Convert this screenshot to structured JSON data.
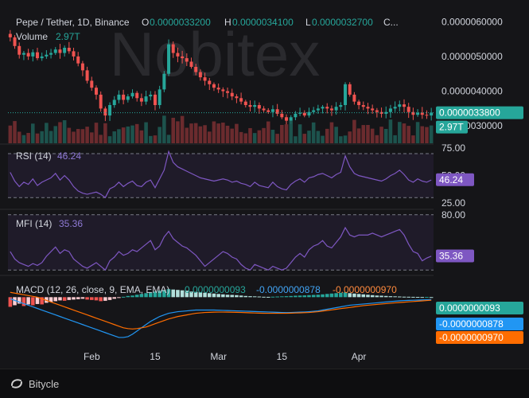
{
  "chart_data": [
    {
      "type": "candlestick",
      "pane": "price",
      "title": "Pepe / Tether, 1D, Binance",
      "ohlc_label": {
        "o_key": "O",
        "o": "0.0000033200",
        "h_key": "H",
        "h": "0.0000034100",
        "l_key": "L",
        "l": "0.0000032700",
        "c_key": "C..."
      },
      "volume_label": "Volume",
      "volume_value": "2.97T",
      "y_ticks": [
        "0.0000060000",
        "0.0000050000",
        "0.0000040000",
        "0.0000030000"
      ],
      "y_tick_values": [
        6.0,
        5.0,
        4.0,
        3.0
      ],
      "ylim": [
        2.5,
        6.35
      ],
      "y_unit_scale": "1e-6",
      "last_price_badge": "0.0000033800",
      "last_price_value": 3.38,
      "volume_badge": "2.97T",
      "close_series": [
        5.55,
        5.3,
        5.05,
        5.1,
        5.0,
        5.12,
        4.95,
        5.0,
        5.05,
        5.1,
        5.2,
        5.1,
        5.25,
        5.15,
        5.0,
        4.8,
        4.6,
        4.3,
        4.1,
        3.9,
        3.5,
        3.3,
        3.6,
        3.75,
        3.9,
        3.75,
        3.85,
        3.95,
        3.8,
        3.7,
        3.85,
        3.9,
        3.6,
        4.05,
        4.5,
        5.35,
        5.1,
        5.0,
        4.95,
        4.85,
        4.7,
        4.55,
        4.4,
        4.3,
        4.2,
        4.1,
        4.05,
        4.0,
        3.95,
        3.85,
        3.8,
        3.7,
        3.6,
        3.55,
        3.6,
        3.5,
        3.45,
        3.4,
        3.48,
        3.35,
        3.25,
        3.15,
        3.25,
        3.35,
        3.38,
        3.3,
        3.4,
        3.45,
        3.5,
        3.55,
        3.5,
        3.45,
        3.55,
        3.6,
        4.2,
        3.9,
        3.7,
        3.6,
        3.55,
        3.5,
        3.45,
        3.4,
        3.35,
        3.4,
        3.5,
        3.55,
        3.62,
        3.55,
        3.4,
        3.32,
        3.38,
        3.32,
        3.3,
        3.38
      ]
    },
    {
      "type": "line",
      "pane": "RSI",
      "label": "RSI (14)",
      "value": "46.24",
      "badge": "46.24",
      "y_ticks": [
        "75.00",
        "50.00",
        "25.00"
      ],
      "ylim": [
        20,
        78
      ],
      "band": [
        30,
        70
      ],
      "values": [
        53,
        45,
        40,
        44,
        42,
        47,
        41,
        44,
        46,
        48,
        52,
        46,
        50,
        46,
        40,
        36,
        34,
        33,
        34,
        35,
        33,
        30,
        38,
        40,
        44,
        40,
        43,
        45,
        41,
        40,
        44,
        46,
        39,
        47,
        55,
        72,
        62,
        58,
        56,
        54,
        52,
        50,
        48,
        47,
        46,
        45,
        46,
        47,
        46,
        44,
        45,
        43,
        42,
        40,
        44,
        41,
        40,
        39,
        44,
        40,
        38,
        37,
        42,
        45,
        47,
        44,
        48,
        49,
        51,
        52,
        50,
        48,
        51,
        53,
        68,
        58,
        52,
        50,
        49,
        48,
        47,
        46,
        45,
        47,
        50,
        52,
        55,
        51,
        46,
        44,
        47,
        45,
        44,
        46
      ]
    },
    {
      "type": "line",
      "pane": "MFI",
      "label": "MFI (14)",
      "value": "35.36",
      "badge": "35.36",
      "y_ticks": [
        "80.00"
      ],
      "ylim": [
        15,
        85
      ],
      "band": [
        20,
        80
      ],
      "values": [
        40,
        32,
        28,
        26,
        24,
        27,
        25,
        28,
        35,
        40,
        45,
        38,
        42,
        40,
        32,
        28,
        24,
        22,
        25,
        28,
        24,
        20,
        30,
        34,
        40,
        36,
        38,
        42,
        40,
        44,
        48,
        52,
        42,
        46,
        56,
        62,
        54,
        50,
        46,
        44,
        40,
        36,
        30,
        24,
        28,
        32,
        36,
        40,
        38,
        34,
        32,
        26,
        22,
        20,
        26,
        24,
        22,
        20,
        24,
        22,
        20,
        22,
        28,
        34,
        38,
        34,
        42,
        46,
        48,
        52,
        46,
        44,
        50,
        56,
        66,
        58,
        56,
        58,
        58,
        58,
        60,
        58,
        56,
        58,
        60,
        62,
        64,
        58,
        48,
        40,
        38,
        30,
        33,
        35
      ]
    },
    {
      "type": "histogram+line",
      "pane": "MACD",
      "label": "MACD (12, 26, close, 9, EMA, EMA)",
      "values_text": [
        "0.0000000093",
        "-0.0000000878",
        "-0.0000000970"
      ],
      "badges": [
        "0.0000000093",
        "-0.0000000878",
        "-0.0000000970"
      ],
      "series": [
        {
          "name": "Histogram",
          "color": "#26a69a",
          "values": [
            -1.2,
            -1.0,
            -0.8,
            -1.1,
            -0.9,
            -1.0,
            -0.85,
            -0.9,
            -0.7,
            -0.6,
            -0.5,
            -0.4,
            -0.45,
            -0.35,
            -0.3,
            -0.25,
            -0.2,
            -0.3,
            -0.35,
            -0.4,
            -0.5,
            -0.45,
            -0.35,
            -0.2,
            -0.1,
            0.05,
            0.15,
            0.2,
            0.3,
            0.4,
            0.5,
            0.6,
            0.7,
            0.8,
            0.9,
            1.0,
            0.95,
            0.9,
            0.85,
            0.8,
            0.7,
            0.65,
            0.6,
            0.55,
            0.5,
            0.45,
            0.4,
            0.35,
            0.3,
            0.28,
            0.25,
            0.2,
            0.15,
            0.12,
            0.1,
            0.08,
            0.05,
            0.04,
            0.06,
            0.08,
            0.1,
            0.12,
            0.15,
            0.18,
            0.2,
            0.22,
            0.25,
            0.28,
            0.3,
            0.35,
            0.4,
            0.45,
            0.5,
            0.55,
            0.6,
            0.5,
            0.45,
            0.4,
            0.35,
            0.3,
            0.25,
            0.2,
            0.18,
            0.15,
            0.12,
            0.1,
            0.08,
            0.06,
            0.05,
            0.04,
            0.03,
            0.02,
            0.02,
            0.01
          ]
        },
        {
          "name": "MACD",
          "color": "#2962ff",
          "values": [
            -0.2,
            -0.4,
            -0.6,
            -0.8,
            -1.0,
            -1.2,
            -1.4,
            -1.6,
            -1.8,
            -2.0,
            -2.2,
            -2.4,
            -2.6,
            -2.8,
            -3.0,
            -3.2,
            -3.4,
            -3.6,
            -3.8,
            -4.0,
            -4.2,
            -4.4,
            -4.6,
            -4.8,
            -5.0,
            -5.0,
            -4.9,
            -4.6,
            -4.2,
            -3.8,
            -3.4,
            -3.0,
            -2.7,
            -2.4,
            -2.2,
            -2.0,
            -1.9,
            -1.8,
            -1.75,
            -1.7,
            -1.65,
            -1.6,
            -1.6,
            -1.6,
            -1.6,
            -1.6,
            -1.62,
            -1.64,
            -1.66,
            -1.68,
            -1.7,
            -1.72,
            -1.74,
            -1.76,
            -1.78,
            -1.8,
            -1.82,
            -1.84,
            -1.86,
            -1.88,
            -1.9,
            -1.92,
            -1.9,
            -1.88,
            -1.86,
            -1.84,
            -1.8,
            -1.75,
            -1.7,
            -1.6,
            -1.5,
            -1.4,
            -1.3,
            -1.2,
            -1.1,
            -1.0,
            -0.95,
            -0.9,
            -0.85,
            -0.8,
            -0.75,
            -0.7,
            -0.65,
            -0.6,
            -0.55,
            -0.5,
            -0.45,
            -0.42,
            -0.4,
            -0.38,
            -0.36,
            -0.34,
            -0.32,
            -0.3
          ]
        },
        {
          "name": "Signal",
          "color": "#ff6d00",
          "values": [
            0.6,
            0.5,
            0.4,
            0.3,
            0.2,
            0.1,
            0.0,
            -0.2,
            -0.4,
            -0.6,
            -0.8,
            -1.0,
            -1.2,
            -1.4,
            -1.6,
            -1.8,
            -2.0,
            -2.2,
            -2.4,
            -2.6,
            -2.8,
            -3.0,
            -3.2,
            -3.4,
            -3.6,
            -3.8,
            -3.9,
            -3.95,
            -3.9,
            -3.8,
            -3.7,
            -3.5,
            -3.3,
            -3.1,
            -2.9,
            -2.7,
            -2.55,
            -2.4,
            -2.3,
            -2.2,
            -2.1,
            -2.0,
            -1.95,
            -1.9,
            -1.88,
            -1.86,
            -1.85,
            -1.85,
            -1.86,
            -1.87,
            -1.88,
            -1.9,
            -1.92,
            -1.94,
            -1.96,
            -1.98,
            -2.0,
            -2.0,
            -2.0,
            -2.0,
            -2.0,
            -2.0,
            -1.98,
            -1.96,
            -1.94,
            -1.92,
            -1.9,
            -1.85,
            -1.8,
            -1.72,
            -1.65,
            -1.58,
            -1.5,
            -1.42,
            -1.35,
            -1.28,
            -1.2,
            -1.12,
            -1.05,
            -1.0,
            -0.95,
            -0.9,
            -0.85,
            -0.8,
            -0.75,
            -0.7,
            -0.66,
            -0.62,
            -0.58,
            -0.54,
            -0.5,
            -0.46,
            -0.42,
            -0.38
          ]
        }
      ]
    }
  ],
  "x_ticks": [
    {
      "label": "Feb",
      "index": 18
    },
    {
      "label": "15",
      "index": 32
    },
    {
      "label": "Mar",
      "index": 46
    },
    {
      "label": "15",
      "index": 60
    },
    {
      "label": "Apr",
      "index": 77
    }
  ],
  "watermark": "Nobitex",
  "footer": {
    "brand": "Bitycle"
  },
  "colors": {
    "up": "#26a69a",
    "down": "#ef5350",
    "indicator": "#7e57c2",
    "badge_green": "#26a69a",
    "badge_purple": "#7e57c2",
    "badge_blue": "#2962ff",
    "badge_orange": "#ff6d00"
  }
}
